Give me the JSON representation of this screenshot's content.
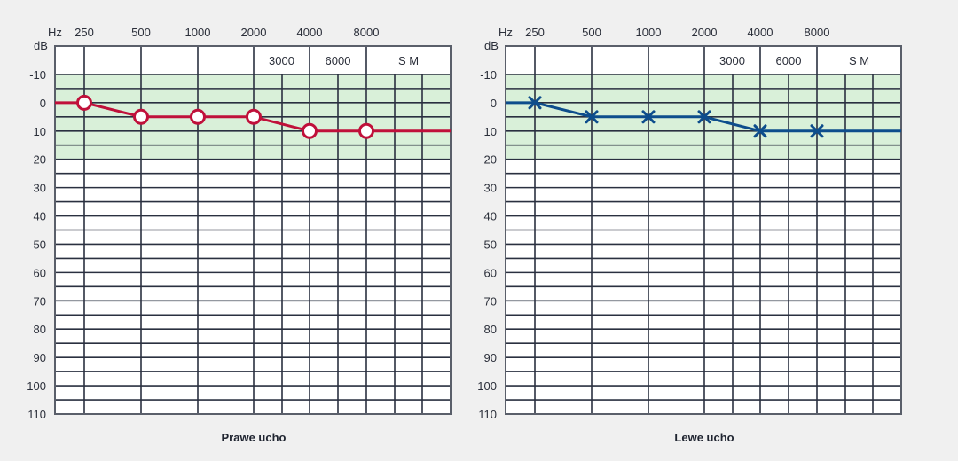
{
  "colors": {
    "background": "#f0f0f0",
    "plot_bg": "#ffffff",
    "normal_band": "#d9f0d9",
    "grid": "#2a3040",
    "right_ear": "#c0103a",
    "left_ear": "#0d4d8c"
  },
  "labels": {
    "hz": "Hz",
    "db": "dB"
  },
  "chart_data": [
    {
      "type": "line",
      "title": "Prawe ucho",
      "xlabel": "Hz",
      "ylabel": "dB",
      "x_ticks_top": [
        "250",
        "500",
        "1000",
        "2000",
        "4000",
        "8000"
      ],
      "x_ticks_inner": [
        "3000",
        "6000",
        "S M"
      ],
      "y_ticks": [
        "-10",
        "0",
        "10",
        "20",
        "30",
        "40",
        "50",
        "60",
        "70",
        "80",
        "90",
        "100",
        "110"
      ],
      "ylim": [
        -20,
        110
      ],
      "y_inverted": true,
      "normal_band": [
        -10,
        20
      ],
      "grid": true,
      "marker": "circle",
      "color": "#c0103a",
      "series": [
        {
          "name": "Prawe ucho",
          "x": [
            250,
            500,
            1000,
            2000,
            4000,
            8000
          ],
          "values": [
            0,
            5,
            5,
            5,
            10,
            10
          ]
        }
      ]
    },
    {
      "type": "line",
      "title": "Lewe ucho",
      "xlabel": "Hz",
      "ylabel": "dB",
      "x_ticks_top": [
        "250",
        "500",
        "1000",
        "2000",
        "4000",
        "8000"
      ],
      "x_ticks_inner": [
        "3000",
        "6000",
        "S M"
      ],
      "y_ticks": [
        "-10",
        "0",
        "10",
        "20",
        "30",
        "40",
        "50",
        "60",
        "70",
        "80",
        "90",
        "100",
        "110"
      ],
      "ylim": [
        -20,
        110
      ],
      "y_inverted": true,
      "normal_band": [
        -10,
        20
      ],
      "grid": true,
      "marker": "cross",
      "color": "#0d4d8c",
      "series": [
        {
          "name": "Lewe ucho",
          "x": [
            250,
            500,
            1000,
            2000,
            4000,
            8000
          ],
          "values": [
            0,
            5,
            5,
            5,
            10,
            10
          ]
        }
      ]
    }
  ]
}
